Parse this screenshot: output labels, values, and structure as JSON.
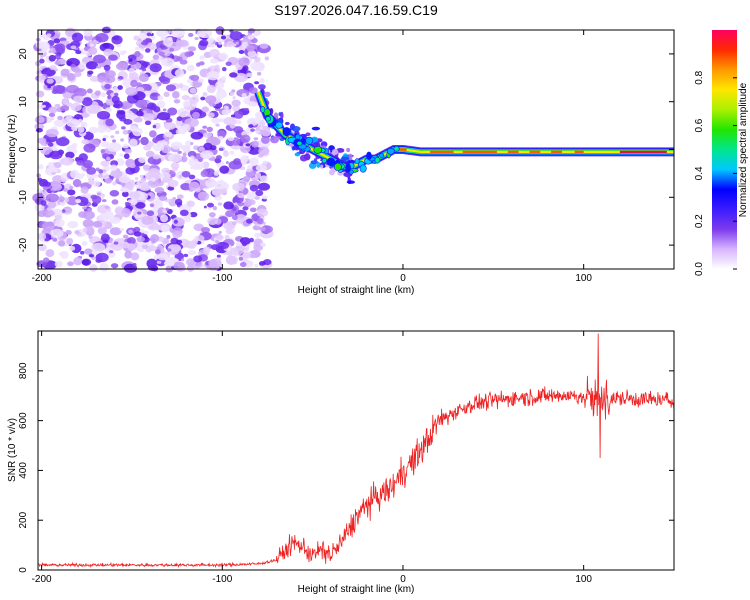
{
  "title": "S197.2026.047.16.59.C19",
  "chart_data": [
    {
      "type": "heatmap",
      "name": "spectrogram",
      "xlabel": "Height of straight line (km)",
      "ylabel": "Frequency (Hz)",
      "xlim": [
        -202,
        150
      ],
      "ylim": [
        -25,
        25
      ],
      "xticks": [
        "-200",
        "-100",
        "0",
        "100"
      ],
      "xtick_values": [
        -200,
        -100,
        0,
        100
      ],
      "yticks": [
        "-20",
        "-10",
        "0",
        "10",
        "20"
      ],
      "ytick_values": [
        -20,
        -10,
        0,
        10,
        20
      ],
      "noise_region_x": [
        -202,
        -78
      ],
      "signal_ridge": {
        "x": [
          -80,
          -75,
          -70,
          -65,
          -60,
          -55,
          -50,
          -45,
          -40,
          -35,
          -30,
          -25,
          -20,
          -15,
          -10,
          -5,
          0,
          10,
          20,
          40,
          60,
          80,
          100,
          120,
          150
        ],
        "y": [
          12,
          7,
          5,
          3,
          2,
          1,
          0,
          -1,
          -2,
          -3,
          -4,
          -3,
          -2,
          -2,
          -1,
          0,
          0,
          -0.5,
          -0.5,
          -0.5,
          -0.5,
          -0.5,
          -0.5,
          -0.5,
          -0.5
        ]
      },
      "colorbar": {
        "label": "Normalized spectral amplitude",
        "range": [
          0,
          1
        ],
        "ticks": [
          "0.0",
          "0.2",
          "0.4",
          "0.6",
          "0.8"
        ],
        "tick_values": [
          0,
          0.2,
          0.4,
          0.6,
          0.8
        ],
        "colors": [
          "#ffffff",
          "#d8b4fe",
          "#7c3aed",
          "#3b1cff",
          "#0000ff",
          "#00c8ff",
          "#00e68c",
          "#22e600",
          "#aaf000",
          "#ffe600",
          "#ff9900",
          "#ff2a00",
          "#ff0060"
        ]
      }
    },
    {
      "type": "line",
      "name": "snr",
      "xlabel": "Height of straight line (km)",
      "ylabel": "SNR (10 * v/v)",
      "xlim": [
        -202,
        150
      ],
      "ylim": [
        0,
        960
      ],
      "xticks": [
        "-200",
        "-100",
        "0",
        "100"
      ],
      "xtick_values": [
        -200,
        -100,
        0,
        100
      ],
      "yticks": [
        "0",
        "200",
        "400",
        "600",
        "800"
      ],
      "ytick_values": [
        0,
        200,
        400,
        600,
        800
      ],
      "color": "#ee2222",
      "trend": {
        "x": [
          -202,
          -150,
          -100,
          -80,
          -70,
          -65,
          -60,
          -55,
          -50,
          -45,
          -40,
          -35,
          -30,
          -25,
          -20,
          -15,
          -10,
          -5,
          0,
          5,
          10,
          15,
          20,
          30,
          40,
          60,
          80,
          100,
          110,
          120,
          150
        ],
        "y": [
          20,
          20,
          20,
          25,
          40,
          80,
          110,
          90,
          60,
          80,
          60,
          100,
          160,
          220,
          260,
          290,
          310,
          340,
          400,
          430,
          480,
          540,
          600,
          640,
          670,
          690,
          700,
          700,
          680,
          690,
          680
        ]
      }
    }
  ]
}
